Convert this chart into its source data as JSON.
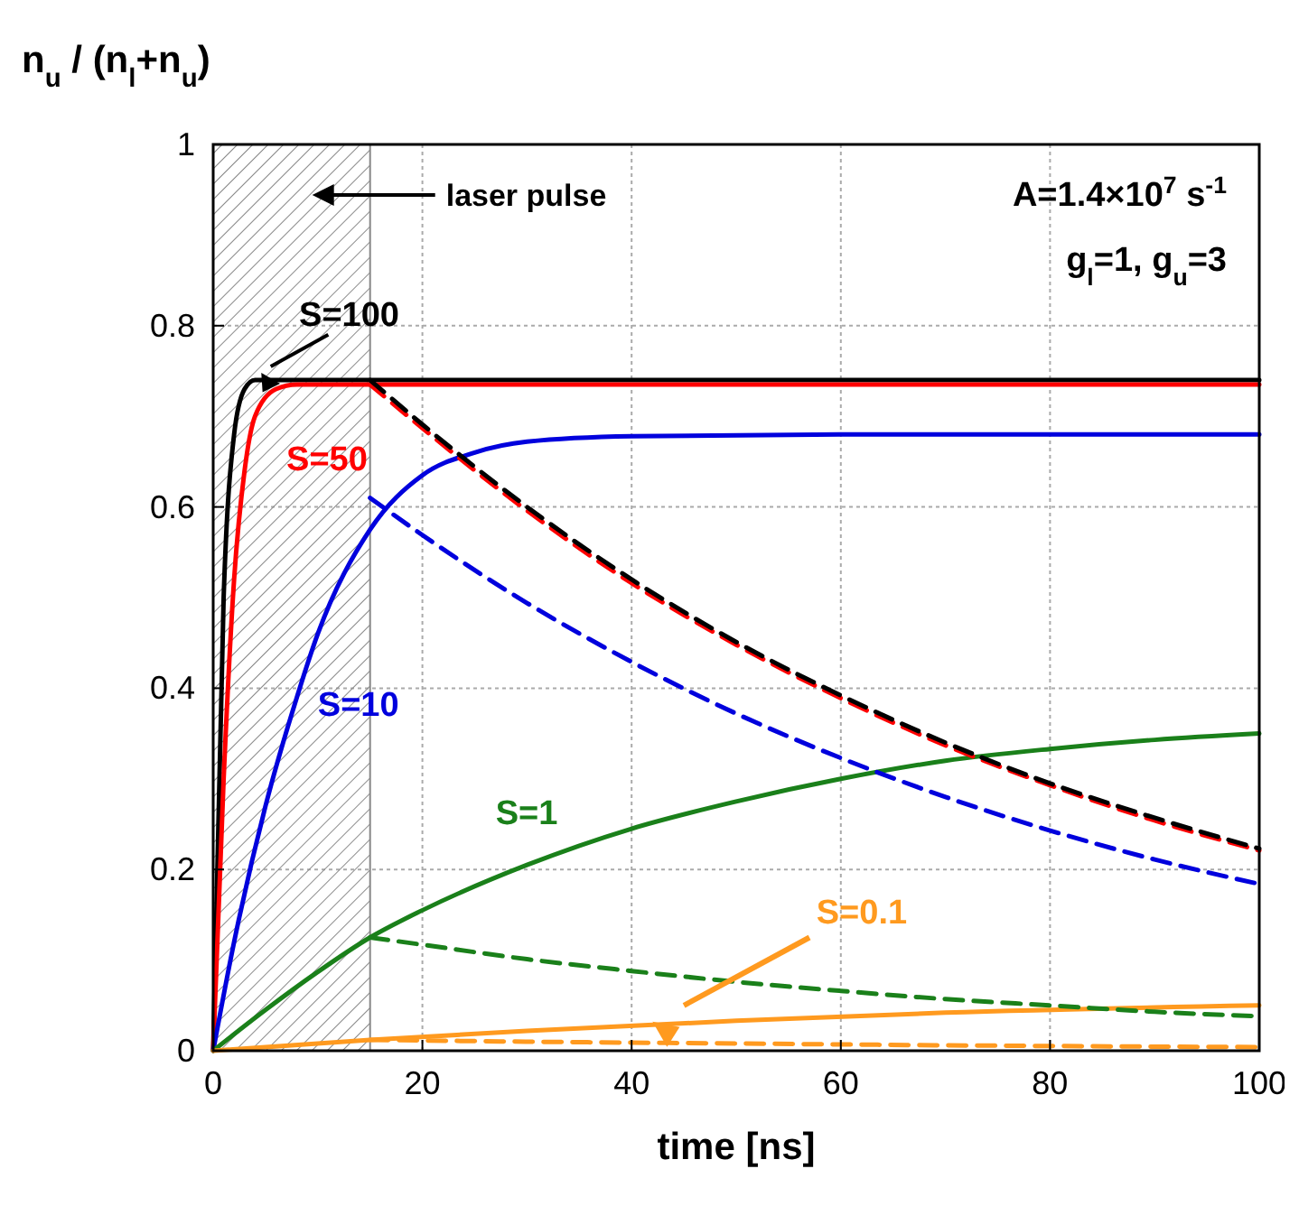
{
  "chart_data": {
    "type": "line",
    "xlabel": "time [ns]",
    "ylabel": "n$_{u}$ / (n$_{l}$+n$_{u}$)",
    "xlim": [
      0,
      100
    ],
    "ylim": [
      0,
      1
    ],
    "xticks": [
      0,
      20,
      40,
      60,
      80,
      100
    ],
    "yticks": [
      0,
      0.2,
      0.4,
      0.6,
      0.8,
      1
    ],
    "grid": true,
    "bands": [
      {
        "axis": "x",
        "from": 0,
        "to": 15,
        "label": "laser pulse",
        "color": "#888888"
      }
    ],
    "annotations": [
      "A=1.4×10$^{7}$ s$^{-1}$",
      "g$_{l}$=1, g$_{u}$=3"
    ],
    "series": [
      {
        "name": "S=100",
        "color": "#000000",
        "line_style": "solid",
        "x": [
          0,
          1,
          2,
          3,
          4,
          100
        ],
        "values": [
          0,
          0.5,
          0.68,
          0.73,
          0.74,
          0.74
        ]
      },
      {
        "name": "S=50",
        "color": "#ff0000",
        "line_style": "solid",
        "x": [
          0,
          1,
          2,
          3,
          4,
          6,
          8,
          100
        ],
        "values": [
          0,
          0.3,
          0.52,
          0.64,
          0.7,
          0.73,
          0.735,
          0.735
        ]
      },
      {
        "name": "S=10",
        "color": "#0000dd",
        "line_style": "solid",
        "x": [
          0,
          2,
          5,
          8,
          10,
          15,
          20,
          25,
          30,
          40,
          60,
          100
        ],
        "values": [
          0,
          0.12,
          0.27,
          0.39,
          0.46,
          0.575,
          0.635,
          0.66,
          0.672,
          0.678,
          0.68,
          0.68
        ]
      },
      {
        "name": "S=1",
        "color": "#1a801a",
        "line_style": "solid",
        "x": [
          0,
          5,
          10,
          15,
          20,
          30,
          40,
          50,
          60,
          70,
          80,
          90,
          100
        ],
        "values": [
          0,
          0.045,
          0.087,
          0.125,
          0.155,
          0.205,
          0.245,
          0.275,
          0.3,
          0.32,
          0.333,
          0.343,
          0.35
        ]
      },
      {
        "name": "S=0.1",
        "color": "#ff9a1f",
        "line_style": "solid",
        "x": [
          0,
          15,
          30,
          50,
          70,
          100
        ],
        "values": [
          0,
          0.012,
          0.022,
          0.033,
          0.042,
          0.05
        ]
      },
      {
        "color": "#ff0000",
        "line_style": "dashed",
        "x": [
          15,
          20,
          30,
          40,
          50,
          60,
          70,
          80,
          90,
          100
        ],
        "values": [
          0.735,
          0.687,
          0.596,
          0.516,
          0.448,
          0.389,
          0.337,
          0.293,
          0.254,
          0.221
        ]
      },
      {
        "color": "#000000",
        "line_style": "dashed",
        "x": [
          15,
          20,
          30,
          40,
          50,
          60,
          70,
          80,
          90,
          100
        ],
        "values": [
          0.74,
          0.691,
          0.6,
          0.52,
          0.451,
          0.392,
          0.34,
          0.295,
          0.257,
          0.223
        ]
      },
      {
        "color": "#0000dd",
        "line_style": "dashed",
        "x": [
          15,
          20,
          30,
          40,
          50,
          60,
          70,
          80,
          90,
          100
        ],
        "values": [
          0.61,
          0.569,
          0.494,
          0.429,
          0.372,
          0.323,
          0.28,
          0.243,
          0.211,
          0.184
        ]
      },
      {
        "color": "#1a801a",
        "line_style": "dashed",
        "x": [
          15,
          20,
          30,
          40,
          50,
          60,
          70,
          80,
          90,
          100
        ],
        "values": [
          0.125,
          0.117,
          0.101,
          0.088,
          0.076,
          0.066,
          0.057,
          0.05,
          0.043,
          0.038
        ]
      },
      {
        "color": "#ff9a1f",
        "line_style": "dashed",
        "x": [
          15,
          30,
          50,
          70,
          100
        ],
        "values": [
          0.012,
          0.01,
          0.008,
          0.006,
          0.004
        ]
      }
    ]
  }
}
